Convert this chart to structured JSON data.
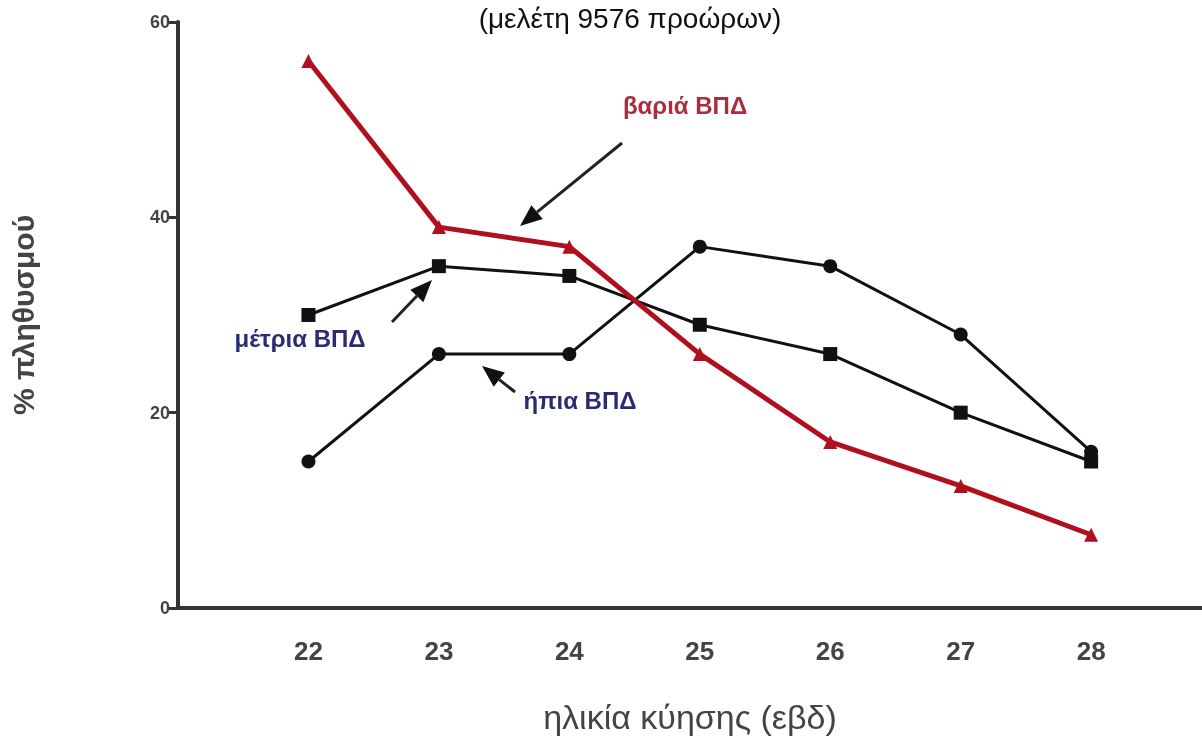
{
  "chart_data": {
    "type": "line",
    "title": "(μελέτη 9576 προώρων)",
    "xlabel": "ηλικία κύησης (εβδ)",
    "ylabel": "% πληθυσμού",
    "x": [
      22,
      23,
      24,
      25,
      26,
      27,
      28
    ],
    "xlim": [
      21,
      28.85
    ],
    "xticks": [
      22,
      23,
      24,
      25,
      26,
      27,
      28
    ],
    "ylim": [
      0,
      60
    ],
    "yticks": [
      0,
      20,
      40,
      60
    ],
    "grid": false,
    "legend": false,
    "series": [
      {
        "name": "βαριά ΒΠΔ",
        "color": "#b0101e",
        "marker": "triangle",
        "values": [
          56,
          39,
          37,
          26,
          17,
          12.5,
          7.5
        ]
      },
      {
        "name": "μέτρια ΒΠΔ",
        "color": "#111111",
        "marker": "square",
        "values": [
          30,
          35,
          34,
          29,
          26,
          20,
          15
        ]
      },
      {
        "name": "ήπια ΒΠΔ",
        "color": "#111111",
        "marker": "circle",
        "values": [
          15,
          26,
          26,
          37,
          35,
          28,
          16
        ]
      }
    ]
  }
}
